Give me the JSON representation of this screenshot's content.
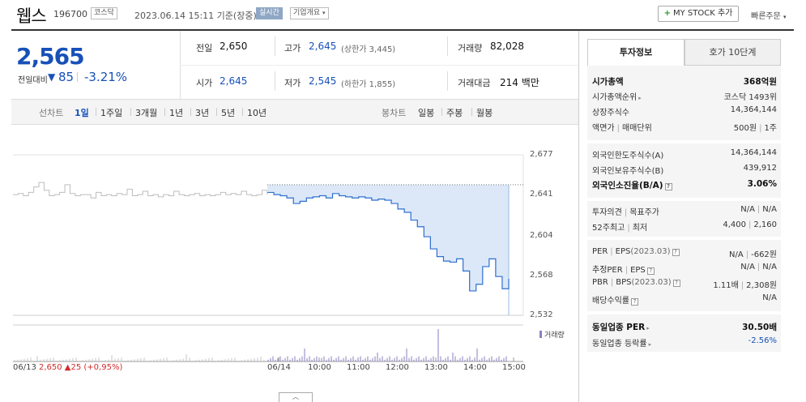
{
  "header": {
    "name": "웹스",
    "code": "196700",
    "market": "코스닥",
    "datetime": "2023.06.14 15:11 기준(장중)",
    "realtime": "실시간",
    "company_info": "기업개요",
    "mystock_btn": "MY STOCK 추가",
    "quick_order": "빠른주문"
  },
  "price": {
    "current": "2,565",
    "diff_label": "전일대비",
    "diff_dir": "▼",
    "diff": "85",
    "diff_pct": "-3.21%"
  },
  "summary": {
    "prev_label": "전일",
    "prev": "2,650",
    "high_label": "고가",
    "high": "2,645",
    "upper_limit": "(상한가 3,445)",
    "volume_label": "거래량",
    "volume": "82,028",
    "open_label": "시가",
    "open": "2,645",
    "low_label": "저가",
    "low": "2,545",
    "lower_limit": "(하한가 1,855)",
    "amount_label": "거래대금",
    "amount": "214 백만"
  },
  "periods": {
    "line_label": "선차트",
    "line": [
      "1일",
      "1주일",
      "3개월",
      "1년",
      "3년",
      "5년",
      "10년"
    ],
    "active": "1일",
    "candle_label": "봉차트",
    "candle": [
      "일봉",
      "주봉",
      "월봉"
    ]
  },
  "chart_data": {
    "type": "line",
    "y_ticks": [
      "2,677",
      "2,641",
      "2,604",
      "2,568",
      "2,532"
    ],
    "ylim": [
      2532,
      2677
    ],
    "x_ticks": [
      "06/14",
      "10:00",
      "11:00",
      "12:00",
      "13:00",
      "14:00",
      "15:00"
    ],
    "prev_close": 2650,
    "series": [
      {
        "x": [
          "09:00",
          "09:10",
          "09:20",
          "09:30",
          "09:40",
          "09:50",
          "10:00",
          "10:10",
          "10:20",
          "10:30",
          "10:40",
          "10:50",
          "11:00",
          "11:10",
          "11:20",
          "11:30",
          "11:40",
          "11:50",
          "12:00",
          "12:10",
          "12:20",
          "12:30",
          "12:40",
          "12:50",
          "13:00",
          "13:10",
          "13:20",
          "13:30",
          "13:40",
          "13:50",
          "14:00",
          "14:10",
          "14:20",
          "14:30",
          "14:40",
          "14:50",
          "15:00",
          "15:10"
        ],
        "values": [
          2643,
          2641,
          2640,
          2638,
          2633,
          2635,
          2638,
          2639,
          2640,
          2638,
          2642,
          2640,
          2639,
          2638,
          2639,
          2638,
          2636,
          2637,
          2636,
          2633,
          2628,
          2625,
          2618,
          2612,
          2603,
          2592,
          2585,
          2581,
          2580,
          2583,
          2572,
          2554,
          2560,
          2576,
          2583,
          2567,
          2556,
          2565
        ]
      }
    ],
    "prev_day_values": [
      2641,
      2642,
      2640,
      2643,
      2648,
      2652,
      2645,
      2640,
      2641,
      2643,
      2650,
      2642,
      2640,
      2641,
      2641,
      2638,
      2643,
      2640,
      2641,
      2640,
      2642,
      2641,
      2646,
      2640,
      2641,
      2644,
      2640,
      2641,
      2639,
      2641,
      2640,
      2644,
      2641,
      2640,
      2641,
      2642,
      2640,
      2641,
      2640,
      2641,
      2643,
      2641,
      2642,
      2641,
      2644,
      2641,
      2640,
      2641,
      2645,
      2641
    ],
    "volume_label": "거래량",
    "footer_date": "06/13",
    "footer_prev": "2,650 ▲25 (+0,95%)"
  },
  "tabs": {
    "info": "투자정보",
    "quote": "호가 10단계"
  },
  "invest": {
    "market_cap_label": "시가총액",
    "market_cap": "368억원",
    "rank_label": "시가총액순위",
    "rank": "코스닥 1493위",
    "shares_label": "상장주식수",
    "shares": "14,364,144",
    "par_label": "액면가",
    "unit_label": "매매단위",
    "par": "500원",
    "unit": "1주",
    "foreign_limit_label": "외국인한도주식수(A)",
    "foreign_limit": "14,364,144",
    "foreign_hold_label": "외국인보유주식수(B)",
    "foreign_hold": "439,912",
    "foreign_ratio_label": "외국인소진율(B/A)",
    "foreign_ratio": "3.06%",
    "opinion_label": "투자의견",
    "target_label": "목표주가",
    "opinion": "N/A",
    "target": "N/A",
    "w52_high_label": "52주최고",
    "w52_low_label": "최저",
    "w52_high": "4,400",
    "w52_low": "2,160",
    "per_label": "PER",
    "eps_label": "EPS",
    "per_year": "(2023.03)",
    "per": "N/A",
    "eps": "-662원",
    "est_per_label": "추정PER",
    "est_eps_label": "EPS",
    "est_per": "N/A",
    "est_eps": "N/A",
    "pbr_label": "PBR",
    "bps_label": "BPS",
    "pbr_year": "(2023.03)",
    "pbr": "1.11배",
    "bps": "2,308원",
    "div_label": "배당수익률",
    "div": "N/A",
    "sector_per_label": "동일업종 PER",
    "sector_per": "30.50배",
    "sector_chg_label": "동일업종 등락률",
    "sector_chg": "-2.56%"
  }
}
